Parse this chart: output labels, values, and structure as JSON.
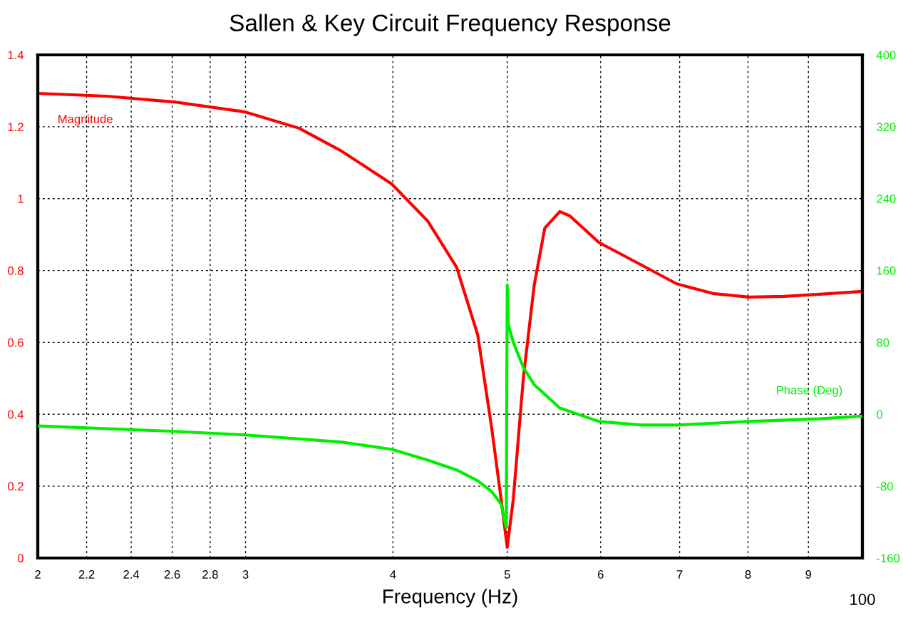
{
  "chart_data": {
    "type": "line",
    "title": "Sallen & Key Circuit Frequency Response",
    "xlabel": "Frequency (Hz)",
    "log": "x",
    "grid": true,
    "line_style": "solid",
    "marker": "none",
    "xlim": [
      2,
      10
    ],
    "xticks": [
      2,
      2.2,
      2.4,
      2.6,
      2.8,
      3,
      4,
      5,
      6,
      7,
      8,
      9
    ],
    "annotations": [
      "100"
    ],
    "ylim": [
      0,
      1.4
    ],
    "yticks": [
      0,
      0.2,
      0.4,
      0.6,
      0.8,
      1,
      1.2,
      1.4
    ],
    "y2lim": [
      -160,
      400
    ],
    "y2ticks": [
      -160,
      -80,
      0,
      80,
      160,
      240,
      320,
      400
    ],
    "series": [
      {
        "name": "Magnitude",
        "color": "#ff0000",
        "x": [
          2,
          2.29,
          2.61,
          3.0,
          3.33,
          3.62,
          3.99,
          4.28,
          4.53,
          4.72,
          4.85,
          4.94,
          5.0,
          5.06,
          5.16,
          5.27,
          5.38,
          5.54,
          5.65,
          5.98,
          6.5,
          6.96,
          7.47,
          8.01,
          8.58,
          9.2,
          10
        ],
        "values": [
          1.293,
          1.285,
          1.269,
          1.241,
          1.196,
          1.132,
          1.041,
          0.938,
          0.809,
          0.621,
          0.363,
          0.165,
          0.03,
          0.165,
          0.502,
          0.759,
          0.918,
          0.964,
          0.952,
          0.878,
          0.815,
          0.763,
          0.736,
          0.726,
          0.728,
          0.734,
          0.742
        ]
      },
      {
        "name": "Phase (Deg)",
        "color": "#00ee00",
        "axis": "y2",
        "x": [
          2,
          2.61,
          3.0,
          3.62,
          3.99,
          4.28,
          4.53,
          4.72,
          4.85,
          4.94,
          4.99,
          5.0,
          5.01,
          5.06,
          5.16,
          5.27,
          5.54,
          5.98,
          6.5,
          6.96,
          8.01,
          9.2,
          10
        ],
        "values": [
          -13,
          -19,
          -23,
          -31,
          -39,
          -51,
          -62,
          -74,
          -86,
          -100,
          -126,
          144,
          100,
          80,
          52,
          33,
          7,
          -8,
          -12,
          -12,
          -8,
          -5,
          -2
        ]
      }
    ]
  }
}
